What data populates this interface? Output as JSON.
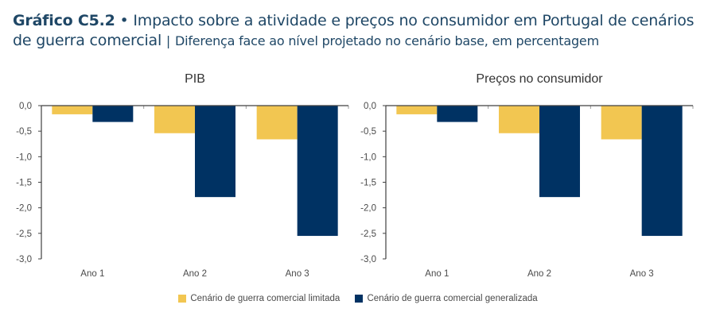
{
  "header": {
    "figure_number": "Gráfico C5.2",
    "bullet": "•",
    "title": "Impacto sobre a atividade e preços no consumidor em Portugal de cenários de guerra comercial",
    "separator": "|",
    "subtitle": "Diferença face ao nível projetado no cenário base, em percentagem"
  },
  "colors": {
    "limitada": "#f2c651",
    "generalizada": "#003263",
    "axis": "#404040",
    "text": "#4a4a4a"
  },
  "legend": [
    {
      "label": "Cenário de guerra comercial limitada",
      "color": "#f2c651"
    },
    {
      "label": "Cenário de guerra comercial generalizada",
      "color": "#003263"
    }
  ],
  "chart_data": [
    {
      "type": "bar",
      "title": "PIB",
      "categories": [
        "Ano 1",
        "Ano 2",
        "Ano 3"
      ],
      "series": [
        {
          "name": "Cenário de guerra comercial limitada",
          "values": [
            -0.17,
            -0.54,
            -0.66
          ]
        },
        {
          "name": "Cenário de guerra comercial generalizada",
          "values": [
            -0.32,
            -1.79,
            -2.55
          ]
        }
      ],
      "xlabel": "",
      "ylabel": "",
      "ylim": [
        -3.0,
        0.0
      ],
      "yticks": [
        "0,0",
        "-0,5",
        "-1,0",
        "-1,5",
        "-2,0",
        "-2,5",
        "-3,0"
      ],
      "ytick_values": [
        0,
        -0.5,
        -1.0,
        -1.5,
        -2.0,
        -2.5,
        -3.0
      ],
      "grid": false,
      "legend_position": "bottom"
    },
    {
      "type": "bar",
      "title": "Preços no consumidor",
      "categories": [
        "Ano 1",
        "Ano 2",
        "Ano 3"
      ],
      "series": [
        {
          "name": "Cenário de guerra comercial limitada",
          "values": [
            -0.17,
            -0.54,
            -0.66
          ]
        },
        {
          "name": "Cenário de guerra comercial generalizada",
          "values": [
            -0.32,
            -1.79,
            -2.55
          ]
        }
      ],
      "xlabel": "",
      "ylabel": "",
      "ylim": [
        -3.0,
        0.0
      ],
      "yticks": [
        "0,0",
        "-0,5",
        "-1,0",
        "-1,5",
        "-2,0",
        "-2,5",
        "-3,0"
      ],
      "ytick_values": [
        0,
        -0.5,
        -1.0,
        -1.5,
        -2.0,
        -2.5,
        -3.0
      ],
      "grid": false,
      "legend_position": "bottom"
    }
  ]
}
